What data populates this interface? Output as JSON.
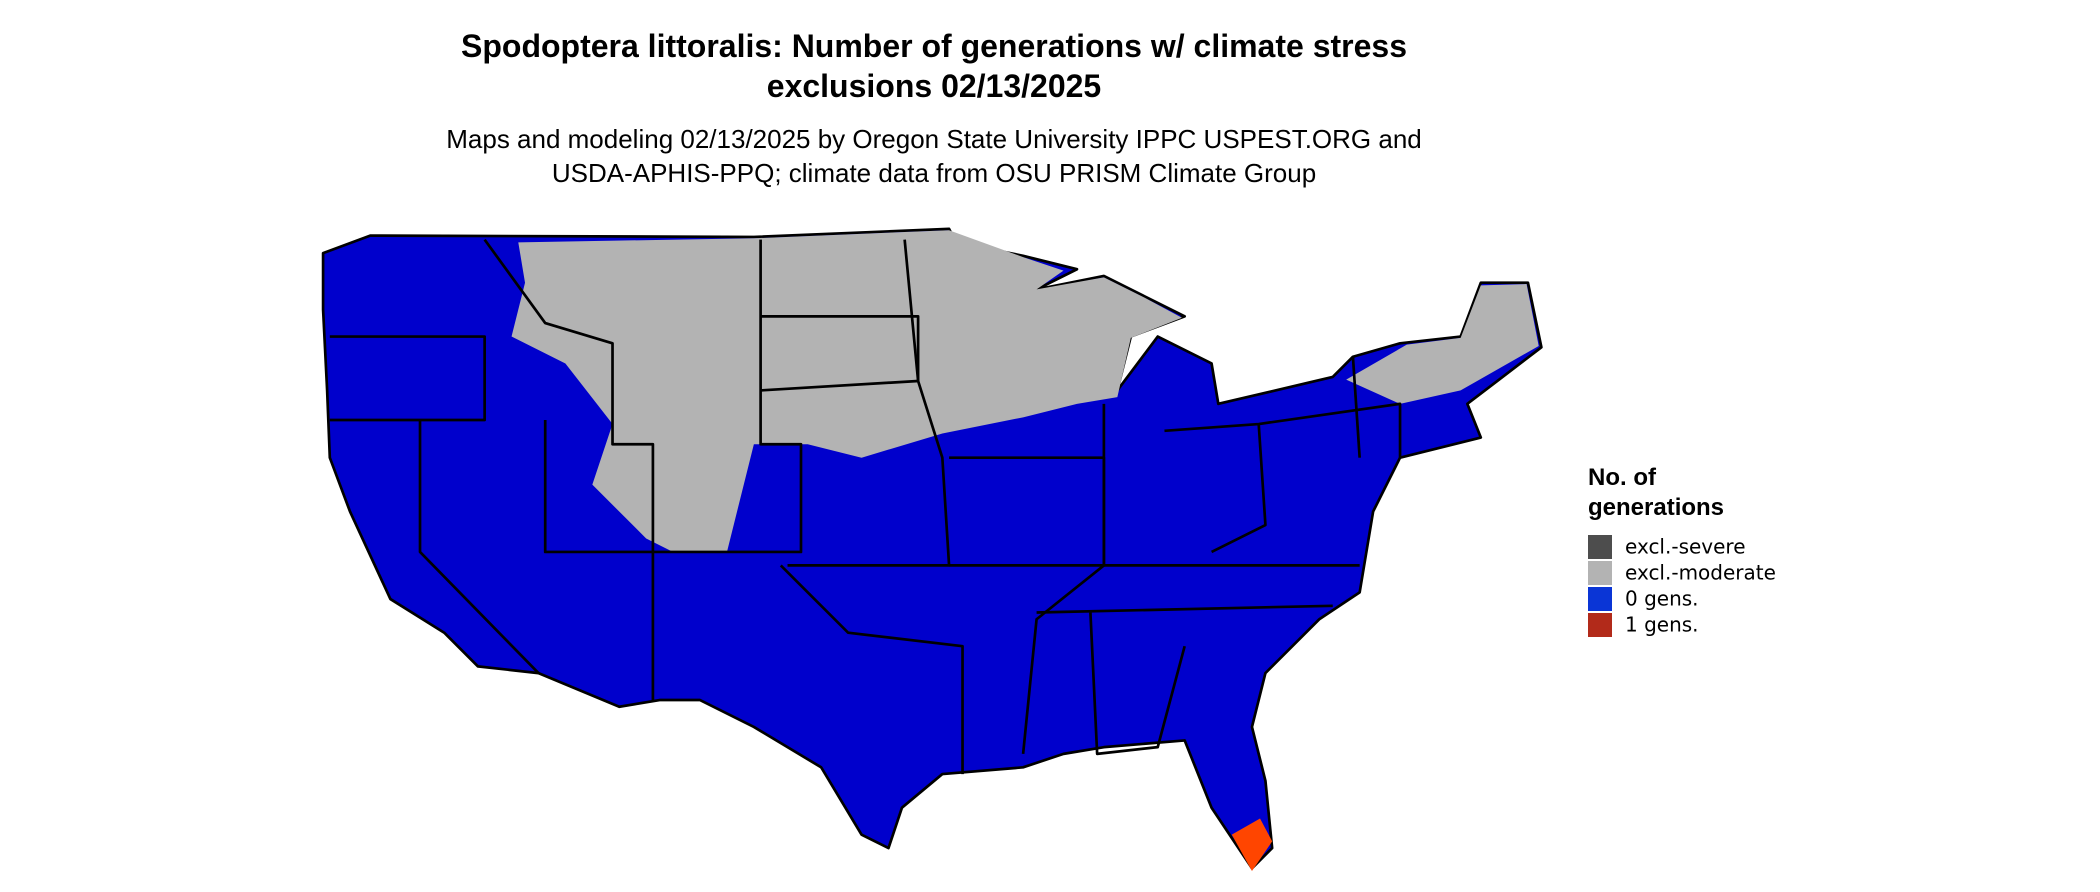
{
  "title": [
    "Spodoptera littoralis: Number of generations w/ climate stress",
    "exclusions 02/13/2025"
  ],
  "subtitle": [
    "Maps and modeling 02/13/2025 by Oregon State University IPPC USPEST.ORG and",
    "USDA-APHIS-PPQ; climate data from OSU PRISM Climate Group"
  ],
  "legend": {
    "title": [
      "No. of",
      "generations"
    ],
    "items": [
      {
        "label": "excl.-severe",
        "color": "#4d4d4d"
      },
      {
        "label": "excl.-moderate",
        "color": "#b3b3b3"
      },
      {
        "label": "0 gens.",
        "color": "#0a35d6"
      },
      {
        "label": "1 gens.",
        "color": "#b22a1a"
      }
    ]
  }
}
